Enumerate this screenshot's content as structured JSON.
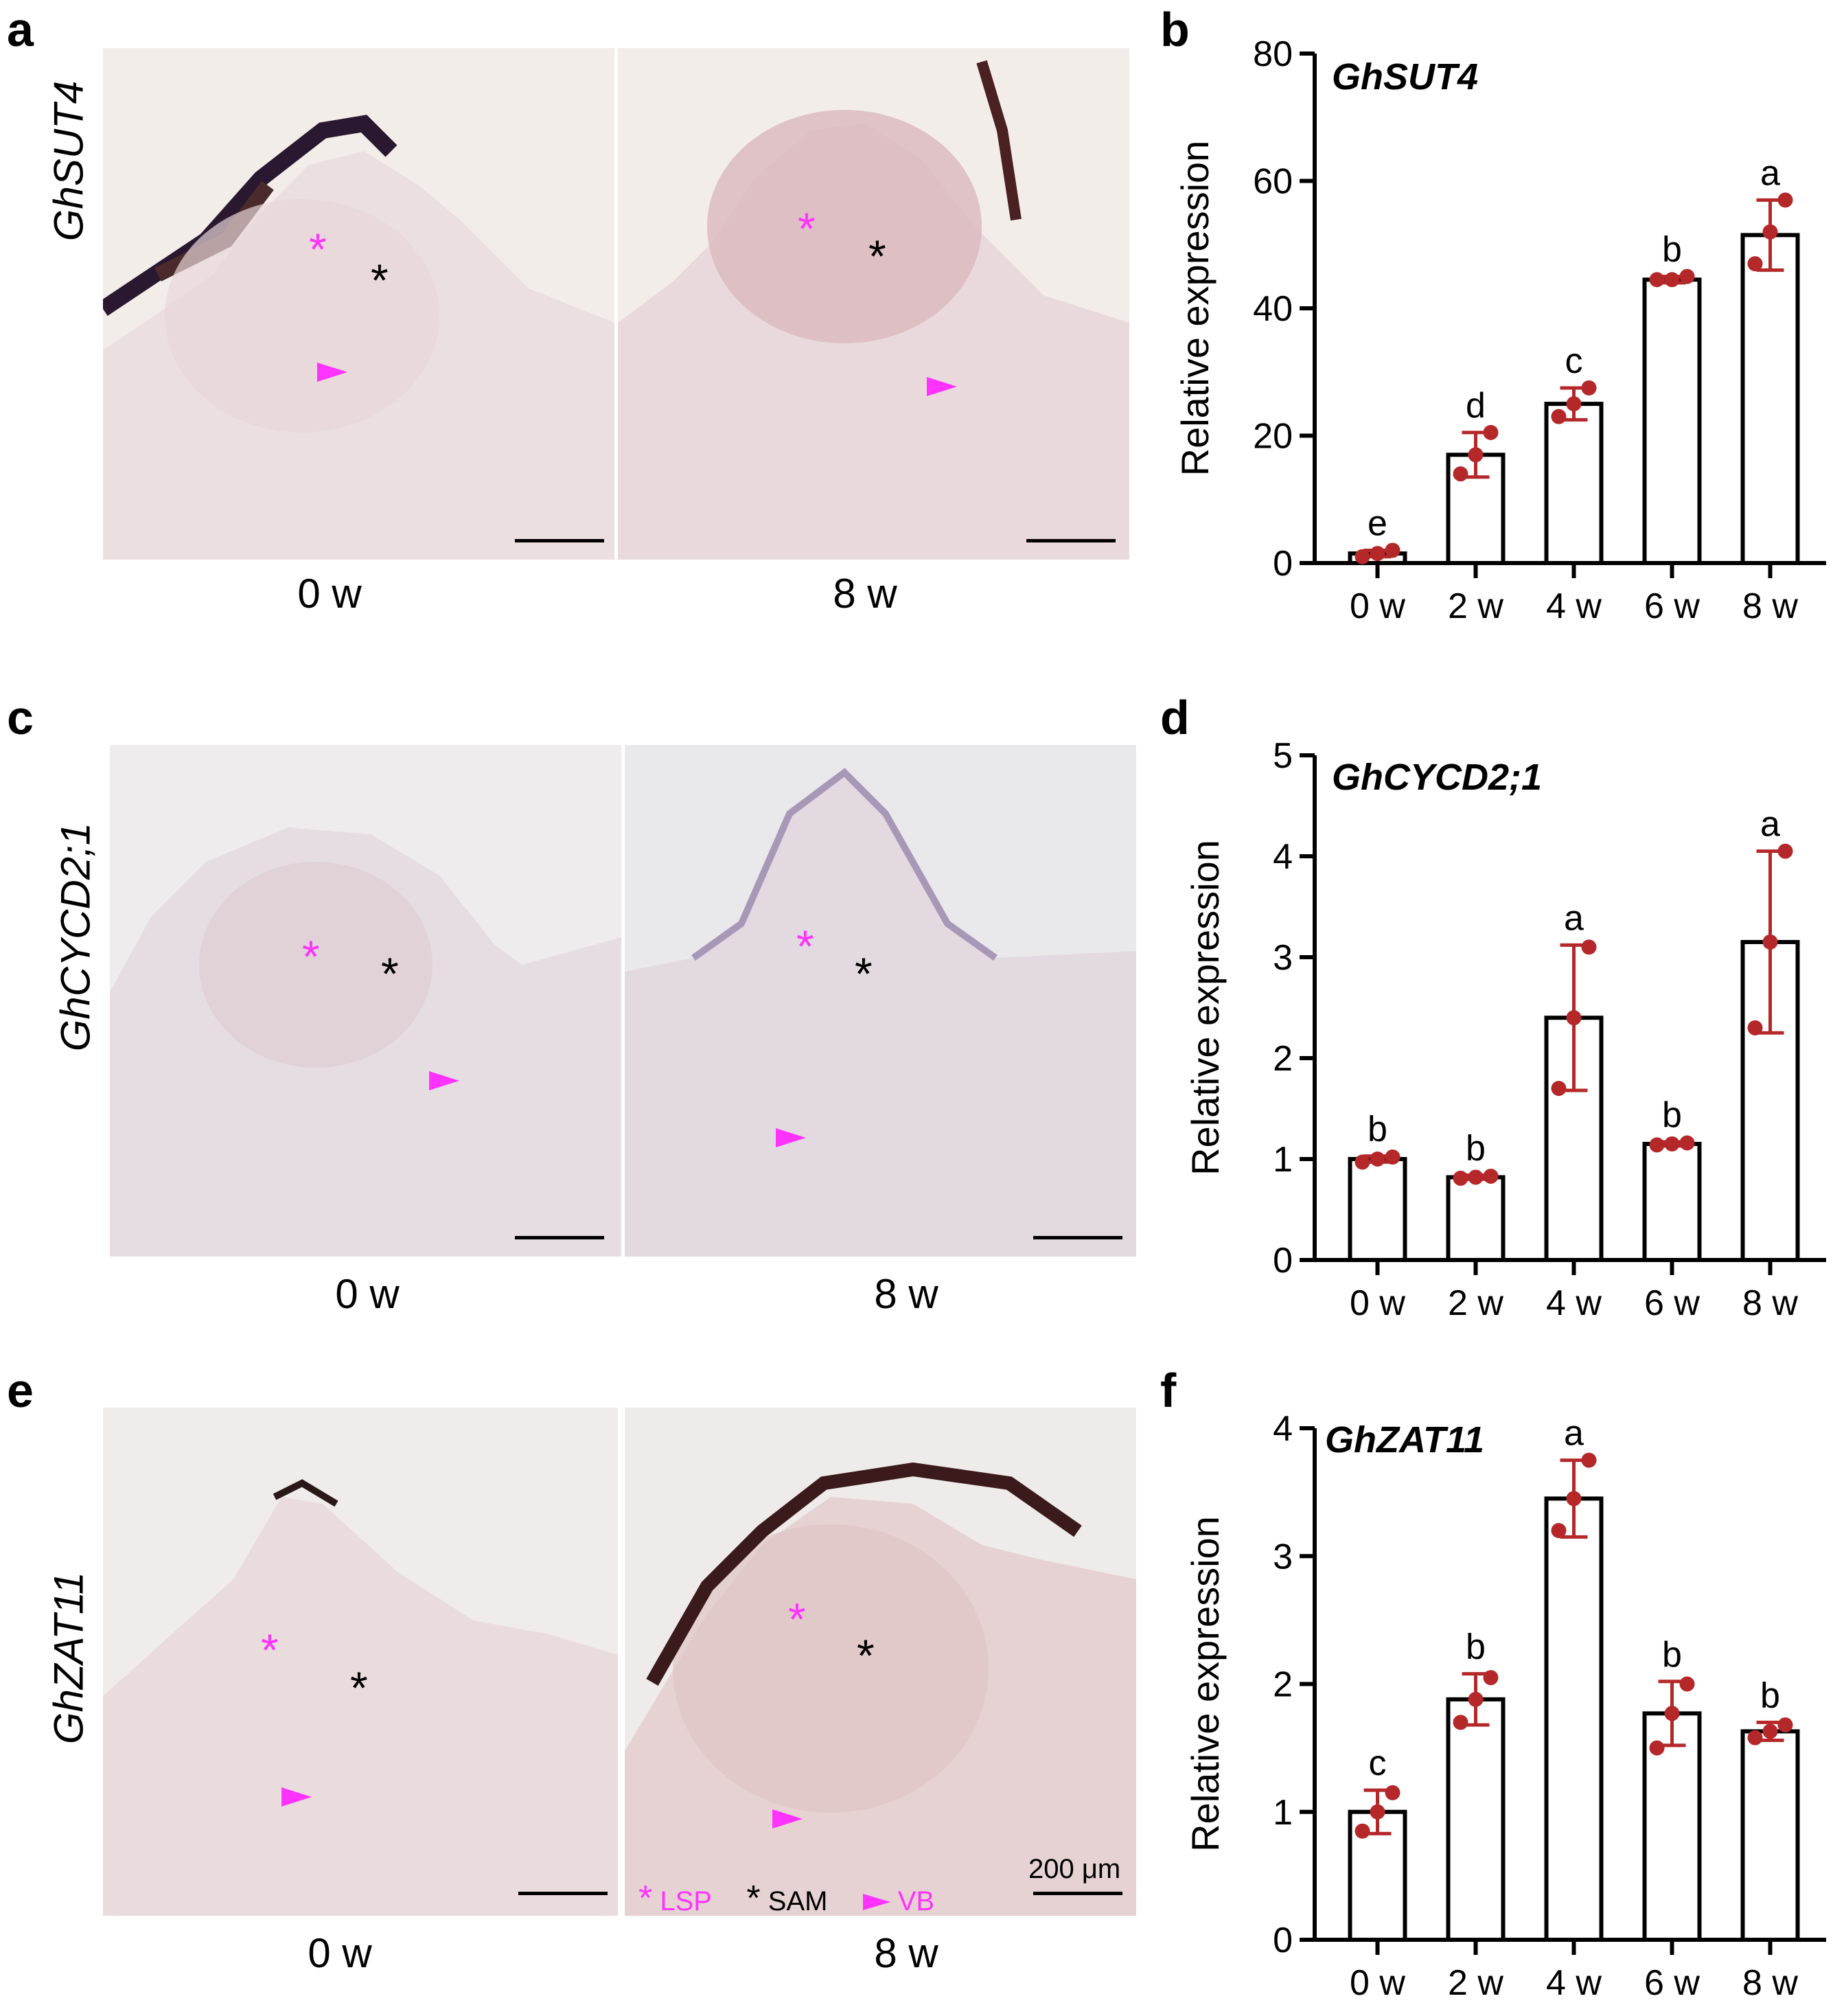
{
  "figure": {
    "rows": [
      {
        "micro_letter": "a",
        "chart_letter": "b",
        "gene": "GhSUT4",
        "time_labels": [
          "0 w",
          "8 w"
        ]
      },
      {
        "micro_letter": "c",
        "chart_letter": "d",
        "gene": "GhCYCD2;1",
        "time_labels": [
          "0 w",
          "8 w"
        ]
      },
      {
        "micro_letter": "e",
        "chart_letter": "f",
        "gene": "GhZAT11",
        "time_labels": [
          "0 w",
          "8 w"
        ]
      }
    ],
    "legend": {
      "lsp": "LSP",
      "sam": "SAM",
      "vb": "VB",
      "scale_bar": "200 μm",
      "lsp_color": "#ff33ff",
      "sam_color": "#000000",
      "vb_color": "#ff33ff"
    },
    "colors": {
      "point": "#b5282a",
      "bar_fill": "#ffffff",
      "bar_stroke": "#000000"
    }
  },
  "chart_data": [
    {
      "type": "bar",
      "panel": "b",
      "title": "GhSUT4",
      "ylabel": "Relative expression",
      "xlabel": "",
      "categories": [
        "0 w",
        "2 w",
        "4 w",
        "6 w",
        "8 w"
      ],
      "values": [
        1.5,
        17,
        25,
        44.5,
        51.5
      ],
      "error": [
        0.5,
        3.5,
        2.5,
        0.5,
        5.5
      ],
      "points": [
        [
          1.0,
          1.5,
          2.0
        ],
        [
          14,
          17,
          20.5
        ],
        [
          23,
          25,
          27.5
        ],
        [
          44.5,
          44.5,
          45
        ],
        [
          47,
          52,
          57
        ]
      ],
      "significance": [
        "e",
        "d",
        "c",
        "b",
        "a"
      ],
      "ylim": [
        0,
        80
      ],
      "yticks": [
        0,
        20,
        40,
        60,
        80
      ]
    },
    {
      "type": "bar",
      "panel": "d",
      "title": "GhCYCD2;1",
      "ylabel": "Relative expression",
      "xlabel": "",
      "categories": [
        "0 w",
        "2 w",
        "4 w",
        "6 w",
        "8 w"
      ],
      "values": [
        1.0,
        0.82,
        2.4,
        1.15,
        3.15
      ],
      "error": [
        0.03,
        0.02,
        0.72,
        0.02,
        0.9
      ],
      "points": [
        [
          0.97,
          1.0,
          1.02
        ],
        [
          0.81,
          0.82,
          0.83
        ],
        [
          1.7,
          2.4,
          3.1
        ],
        [
          1.14,
          1.15,
          1.16
        ],
        [
          2.3,
          3.15,
          4.05
        ]
      ],
      "significance": [
        "b",
        "b",
        "a",
        "b",
        "a"
      ],
      "ylim": [
        0,
        5
      ],
      "yticks": [
        0,
        1,
        2,
        3,
        4,
        5
      ]
    },
    {
      "type": "bar",
      "panel": "f",
      "title": "GhZAT11",
      "ylabel": "Relative expression",
      "xlabel": "",
      "categories": [
        "0 w",
        "2 w",
        "4 w",
        "6 w",
        "8 w"
      ],
      "values": [
        1.0,
        1.88,
        3.45,
        1.77,
        1.63
      ],
      "error": [
        0.17,
        0.2,
        0.3,
        0.25,
        0.07
      ],
      "points": [
        [
          0.85,
          1.0,
          1.15
        ],
        [
          1.7,
          1.88,
          2.05
        ],
        [
          3.2,
          3.45,
          3.75
        ],
        [
          1.5,
          1.77,
          2.0
        ],
        [
          1.58,
          1.63,
          1.68
        ]
      ],
      "significance": [
        "c",
        "b",
        "a",
        "b",
        "b"
      ],
      "ylim": [
        0,
        4
      ],
      "yticks": [
        0,
        1,
        2,
        3,
        4
      ]
    }
  ]
}
